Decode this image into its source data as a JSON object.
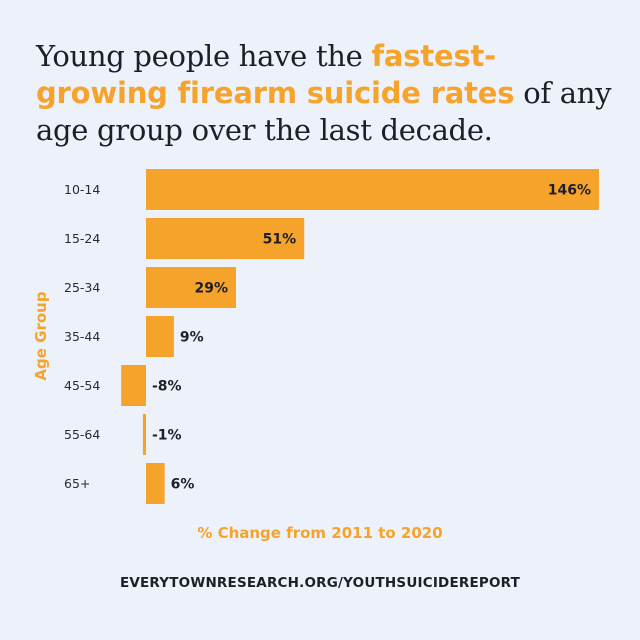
{
  "title": {
    "part1": "Young people have the ",
    "highlight": "fastest-growing firearm suicide rates",
    "part2": " of any age group over the last decade."
  },
  "footer": "EVERYTOWNRESEARCH.ORG/YOUTHSUICIDEREPORT",
  "colors": {
    "bar": "#f6a32c",
    "background": "#edf1fa",
    "accent": "#f6a32c"
  },
  "chart_data": {
    "type": "bar",
    "orientation": "horizontal",
    "categories": [
      "10-14",
      "15-24",
      "25-34",
      "35-44",
      "45-54",
      "55-64",
      "65+"
    ],
    "values": [
      146,
      51,
      29,
      9,
      -8,
      -1,
      6
    ],
    "value_labels": [
      "146%",
      "51%",
      "29%",
      "9%",
      "-8%",
      "-1%",
      "6%"
    ],
    "xlabel": "% Change from 2011 to 2020",
    "ylabel": "Age Group",
    "grid": false,
    "legend": "none"
  }
}
